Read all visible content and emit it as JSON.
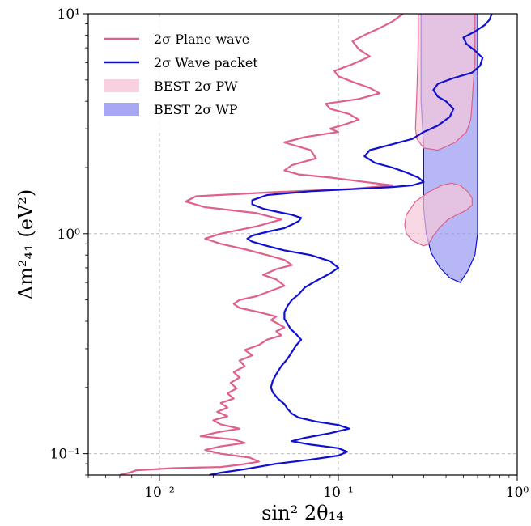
{
  "chart_data": {
    "type": "line",
    "title": "",
    "xlabel": "sin² 2θ₁₄",
    "ylabel": "Δm²₄₁ (eV²)",
    "xscale": "log",
    "yscale": "log",
    "xlim": [
      0.004,
      1.0
    ],
    "ylim": [
      0.08,
      10
    ],
    "grid": true,
    "legend_position": "top-left",
    "x_ticks": [
      {
        "value": 0.01,
        "label": "10⁻²"
      },
      {
        "value": 0.1,
        "label": "10⁻¹"
      },
      {
        "value": 1.0,
        "label": "10⁰"
      }
    ],
    "y_ticks": [
      {
        "value": 0.1,
        "label": "10⁻¹"
      },
      {
        "value": 1.0,
        "label": "10⁰"
      },
      {
        "value": 10.0,
        "label": "10¹"
      }
    ],
    "series": [
      {
        "name": "2σ Plane wave",
        "kind": "line",
        "color": "#e0608d",
        "points": [
          [
            0.006,
            0.08
          ],
          [
            0.0068,
            0.082
          ],
          [
            0.0074,
            0.084
          ],
          [
            0.012,
            0.086
          ],
          [
            0.022,
            0.087
          ],
          [
            0.028,
            0.089
          ],
          [
            0.036,
            0.092
          ],
          [
            0.032,
            0.096
          ],
          [
            0.022,
            0.1
          ],
          [
            0.018,
            0.104
          ],
          [
            0.022,
            0.108
          ],
          [
            0.03,
            0.112
          ],
          [
            0.026,
            0.116
          ],
          [
            0.017,
            0.12
          ],
          [
            0.021,
            0.125
          ],
          [
            0.028,
            0.13
          ],
          [
            0.022,
            0.136
          ],
          [
            0.02,
            0.142
          ],
          [
            0.024,
            0.148
          ],
          [
            0.021,
            0.155
          ],
          [
            0.024,
            0.162
          ],
          [
            0.022,
            0.17
          ],
          [
            0.026,
            0.178
          ],
          [
            0.024,
            0.188
          ],
          [
            0.027,
            0.198
          ],
          [
            0.025,
            0.21
          ],
          [
            0.028,
            0.222
          ],
          [
            0.026,
            0.235
          ],
          [
            0.03,
            0.25
          ],
          [
            0.028,
            0.265
          ],
          [
            0.033,
            0.28
          ],
          [
            0.03,
            0.296
          ],
          [
            0.036,
            0.312
          ],
          [
            0.04,
            0.33
          ],
          [
            0.048,
            0.345
          ],
          [
            0.045,
            0.36
          ],
          [
            0.05,
            0.375
          ],
          [
            0.046,
            0.39
          ],
          [
            0.042,
            0.405
          ],
          [
            0.045,
            0.42
          ],
          [
            0.036,
            0.44
          ],
          [
            0.028,
            0.46
          ],
          [
            0.026,
            0.48
          ],
          [
            0.028,
            0.5
          ],
          [
            0.035,
            0.52
          ],
          [
            0.042,
            0.55
          ],
          [
            0.05,
            0.58
          ],
          [
            0.045,
            0.62
          ],
          [
            0.038,
            0.65
          ],
          [
            0.045,
            0.69
          ],
          [
            0.055,
            0.72
          ],
          [
            0.05,
            0.76
          ],
          [
            0.04,
            0.8
          ],
          [
            0.03,
            0.85
          ],
          [
            0.022,
            0.9
          ],
          [
            0.018,
            0.95
          ],
          [
            0.022,
            1.0
          ],
          [
            0.035,
            1.08
          ],
          [
            0.048,
            1.16
          ],
          [
            0.035,
            1.24
          ],
          [
            0.018,
            1.32
          ],
          [
            0.014,
            1.4
          ],
          [
            0.016,
            1.48
          ],
          [
            0.04,
            1.54
          ],
          [
            0.12,
            1.6
          ],
          [
            0.2,
            1.66
          ],
          [
            0.14,
            1.72
          ],
          [
            0.09,
            1.8
          ],
          [
            0.06,
            1.86
          ],
          [
            0.05,
            1.94
          ],
          [
            0.055,
            2.05
          ],
          [
            0.075,
            2.2
          ],
          [
            0.07,
            2.4
          ],
          [
            0.05,
            2.6
          ],
          [
            0.065,
            2.75
          ],
          [
            0.1,
            2.9
          ],
          [
            0.09,
            3.0
          ],
          [
            0.11,
            3.15
          ],
          [
            0.13,
            3.3
          ],
          [
            0.115,
            3.5
          ],
          [
            0.09,
            3.7
          ],
          [
            0.085,
            3.9
          ],
          [
            0.13,
            4.1
          ],
          [
            0.17,
            4.35
          ],
          [
            0.15,
            4.6
          ],
          [
            0.12,
            4.9
          ],
          [
            0.1,
            5.2
          ],
          [
            0.095,
            5.5
          ],
          [
            0.12,
            5.9
          ],
          [
            0.15,
            6.4
          ],
          [
            0.13,
            6.9
          ],
          [
            0.12,
            7.5
          ],
          [
            0.14,
            8.0
          ],
          [
            0.17,
            8.6
          ],
          [
            0.2,
            9.2
          ],
          [
            0.23,
            10.0
          ]
        ]
      },
      {
        "name": "2σ Wave packet",
        "kind": "line",
        "color": "#1010d0",
        "points": [
          [
            0.019,
            0.08
          ],
          [
            0.022,
            0.082
          ],
          [
            0.03,
            0.085
          ],
          [
            0.045,
            0.09
          ],
          [
            0.07,
            0.094
          ],
          [
            0.1,
            0.098
          ],
          [
            0.112,
            0.102
          ],
          [
            0.1,
            0.106
          ],
          [
            0.07,
            0.11
          ],
          [
            0.055,
            0.114
          ],
          [
            0.065,
            0.118
          ],
          [
            0.09,
            0.124
          ],
          [
            0.115,
            0.13
          ],
          [
            0.1,
            0.135
          ],
          [
            0.075,
            0.14
          ],
          [
            0.06,
            0.146
          ],
          [
            0.055,
            0.152
          ],
          [
            0.052,
            0.16
          ],
          [
            0.05,
            0.168
          ],
          [
            0.046,
            0.178
          ],
          [
            0.043,
            0.19
          ],
          [
            0.042,
            0.2
          ],
          [
            0.043,
            0.215
          ],
          [
            0.045,
            0.23
          ],
          [
            0.048,
            0.25
          ],
          [
            0.052,
            0.27
          ],
          [
            0.055,
            0.29
          ],
          [
            0.058,
            0.31
          ],
          [
            0.062,
            0.33
          ],
          [
            0.058,
            0.35
          ],
          [
            0.054,
            0.37
          ],
          [
            0.052,
            0.39
          ],
          [
            0.05,
            0.41
          ],
          [
            0.05,
            0.44
          ],
          [
            0.052,
            0.47
          ],
          [
            0.055,
            0.5
          ],
          [
            0.06,
            0.53
          ],
          [
            0.065,
            0.57
          ],
          [
            0.075,
            0.61
          ],
          [
            0.09,
            0.66
          ],
          [
            0.1,
            0.7
          ],
          [
            0.09,
            0.75
          ],
          [
            0.07,
            0.8
          ],
          [
            0.05,
            0.84
          ],
          [
            0.04,
            0.88
          ],
          [
            0.033,
            0.92
          ],
          [
            0.031,
            0.95
          ],
          [
            0.033,
            0.98
          ],
          [
            0.04,
            1.02
          ],
          [
            0.05,
            1.06
          ],
          [
            0.055,
            1.1
          ],
          [
            0.06,
            1.14
          ],
          [
            0.062,
            1.18
          ],
          [
            0.055,
            1.22
          ],
          [
            0.045,
            1.26
          ],
          [
            0.038,
            1.3
          ],
          [
            0.033,
            1.36
          ],
          [
            0.033,
            1.42
          ],
          [
            0.04,
            1.5
          ],
          [
            0.07,
            1.56
          ],
          [
            0.13,
            1.6
          ],
          [
            0.2,
            1.63
          ],
          [
            0.26,
            1.66
          ],
          [
            0.3,
            1.72
          ],
          [
            0.28,
            1.8
          ],
          [
            0.24,
            1.9
          ],
          [
            0.2,
            2.0
          ],
          [
            0.16,
            2.1
          ],
          [
            0.14,
            2.25
          ],
          [
            0.15,
            2.4
          ],
          [
            0.2,
            2.55
          ],
          [
            0.26,
            2.7
          ],
          [
            0.3,
            2.9
          ],
          [
            0.36,
            3.1
          ],
          [
            0.42,
            3.4
          ],
          [
            0.44,
            3.7
          ],
          [
            0.4,
            4.0
          ],
          [
            0.36,
            4.2
          ],
          [
            0.34,
            4.5
          ],
          [
            0.36,
            4.8
          ],
          [
            0.44,
            5.1
          ],
          [
            0.56,
            5.4
          ],
          [
            0.62,
            5.8
          ],
          [
            0.64,
            6.3
          ],
          [
            0.58,
            6.8
          ],
          [
            0.52,
            7.3
          ],
          [
            0.5,
            7.8
          ],
          [
            0.58,
            8.3
          ],
          [
            0.66,
            8.9
          ],
          [
            0.7,
            9.4
          ],
          [
            0.72,
            10.0
          ]
        ]
      },
      {
        "name": "BEST 2σ PW",
        "kind": "area",
        "color": "#f7c8da",
        "edge_color": "#e0608d",
        "regions": [
          [
            [
              0.28,
              10.0
            ],
            [
              0.58,
              10.0
            ],
            [
              0.58,
              8.0
            ],
            [
              0.58,
              6.0
            ],
            [
              0.57,
              5.0
            ],
            [
              0.56,
              4.0
            ],
            [
              0.55,
              3.3
            ],
            [
              0.52,
              2.9
            ],
            [
              0.45,
              2.6
            ],
            [
              0.36,
              2.4
            ],
            [
              0.3,
              2.45
            ],
            [
              0.275,
              2.7
            ],
            [
              0.27,
              3.0
            ],
            [
              0.272,
              3.5
            ],
            [
              0.275,
              4.5
            ],
            [
              0.278,
              6.0
            ],
            [
              0.28,
              8.0
            ]
          ],
          [
            [
              0.3,
              0.88
            ],
            [
              0.26,
              0.93
            ],
            [
              0.24,
              1.0
            ],
            [
              0.235,
              1.1
            ],
            [
              0.24,
              1.22
            ],
            [
              0.27,
              1.4
            ],
            [
              0.32,
              1.55
            ],
            [
              0.38,
              1.66
            ],
            [
              0.43,
              1.7
            ],
            [
              0.48,
              1.66
            ],
            [
              0.53,
              1.55
            ],
            [
              0.56,
              1.45
            ],
            [
              0.56,
              1.35
            ],
            [
              0.52,
              1.28
            ],
            [
              0.46,
              1.22
            ],
            [
              0.41,
              1.16
            ],
            [
              0.37,
              1.07
            ],
            [
              0.34,
              0.98
            ],
            [
              0.32,
              0.9
            ]
          ]
        ]
      },
      {
        "name": "BEST 2σ WP",
        "kind": "area",
        "color": "#9898f2",
        "edge_color": "#1010d0",
        "regions": [
          [
            [
              0.29,
              10.0
            ],
            [
              0.6,
              10.0
            ],
            [
              0.6,
              6.0
            ],
            [
              0.6,
              3.0
            ],
            [
              0.6,
              1.5
            ],
            [
              0.6,
              1.0
            ],
            [
              0.58,
              0.8
            ],
            [
              0.53,
              0.68
            ],
            [
              0.48,
              0.6
            ],
            [
              0.42,
              0.63
            ],
            [
              0.37,
              0.7
            ],
            [
              0.33,
              0.82
            ],
            [
              0.31,
              1.0
            ],
            [
              0.3,
              1.3
            ],
            [
              0.3,
              1.8
            ],
            [
              0.3,
              2.5
            ],
            [
              0.29,
              4.0
            ],
            [
              0.29,
              6.5
            ]
          ]
        ]
      }
    ]
  }
}
